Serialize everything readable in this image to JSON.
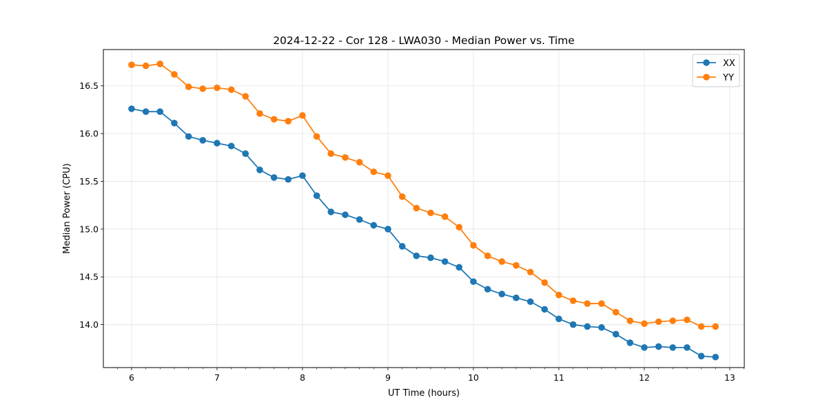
{
  "chart_data": {
    "type": "line",
    "title": "2024-12-22 - Cor 128 - LWA030 - Median Power vs. Time",
    "xlabel": "UT Time (hours)",
    "ylabel": "Median Power (CPU)",
    "xlim": [
      5.67,
      13.17
    ],
    "ylim": [
      13.55,
      16.88
    ],
    "xticks": [
      6,
      7,
      8,
      9,
      10,
      11,
      12,
      13
    ],
    "xtick_labels": [
      "6",
      "7",
      "8",
      "9",
      "10",
      "11",
      "12",
      "13"
    ],
    "yticks": [
      14.0,
      14.5,
      15.0,
      15.5,
      16.0,
      16.5
    ],
    "ytick_labels": [
      "14.0",
      "14.5",
      "15.0",
      "15.5",
      "16.0",
      "16.5"
    ],
    "grid": true,
    "legend_position": "top-right",
    "x": [
      6.0,
      6.167,
      6.333,
      6.5,
      6.667,
      6.833,
      7.0,
      7.167,
      7.333,
      7.5,
      7.667,
      7.833,
      8.0,
      8.167,
      8.333,
      8.5,
      8.667,
      8.833,
      9.0,
      9.167,
      9.333,
      9.5,
      9.667,
      9.833,
      10.0,
      10.167,
      10.333,
      10.5,
      10.667,
      10.833,
      11.0,
      11.167,
      11.333,
      11.5,
      11.667,
      11.833,
      12.0,
      12.167,
      12.333,
      12.5,
      12.667,
      12.833
    ],
    "series": [
      {
        "name": "XX",
        "color": "#1f77b4",
        "values": [
          16.26,
          16.23,
          16.23,
          16.11,
          15.97,
          15.93,
          15.9,
          15.87,
          15.79,
          15.62,
          15.54,
          15.52,
          15.56,
          15.35,
          15.18,
          15.15,
          15.1,
          15.04,
          15.0,
          14.82,
          14.72,
          14.7,
          14.66,
          14.6,
          14.45,
          14.37,
          14.32,
          14.28,
          14.24,
          14.16,
          14.06,
          14.0,
          13.98,
          13.97,
          13.9,
          13.81,
          13.76,
          13.77,
          13.76,
          13.76,
          13.67,
          13.66
        ]
      },
      {
        "name": "YY",
        "color": "#ff7f0e",
        "values": [
          16.72,
          16.71,
          16.73,
          16.62,
          16.49,
          16.47,
          16.48,
          16.46,
          16.39,
          16.21,
          16.15,
          16.13,
          16.19,
          15.97,
          15.79,
          15.75,
          15.7,
          15.6,
          15.56,
          15.34,
          15.22,
          15.17,
          15.13,
          15.02,
          14.83,
          14.72,
          14.66,
          14.62,
          14.55,
          14.44,
          14.31,
          14.25,
          14.22,
          14.22,
          14.13,
          14.04,
          14.01,
          14.03,
          14.04,
          14.05,
          13.98,
          13.98
        ]
      }
    ]
  }
}
